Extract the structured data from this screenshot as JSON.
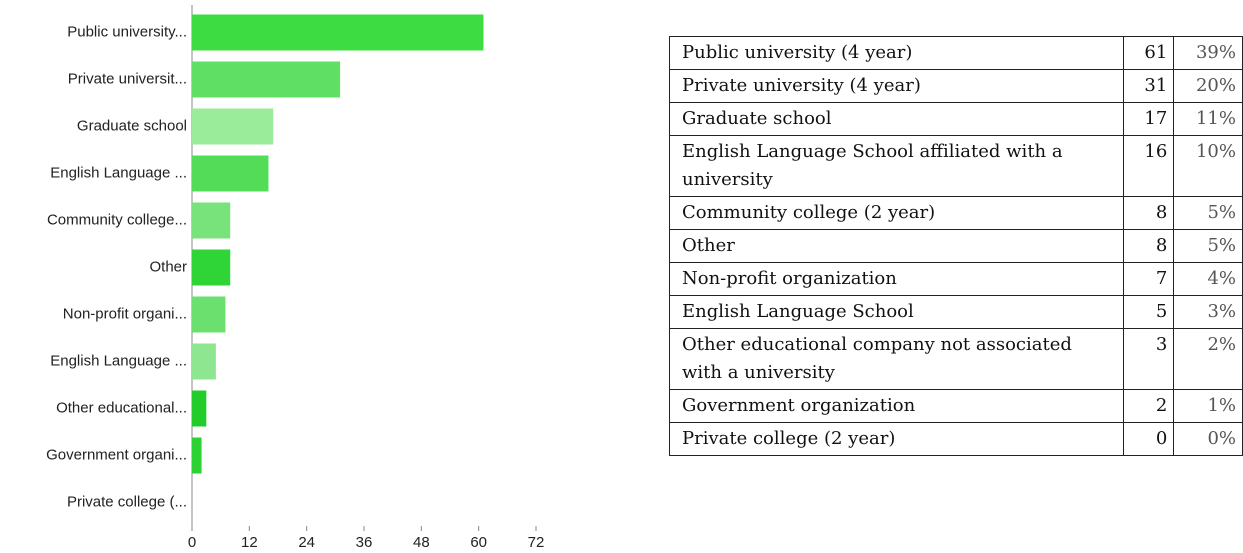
{
  "chart_data": {
    "type": "bar",
    "orientation": "horizontal",
    "categories": [
      "Public university...",
      "Private universit...",
      "Graduate school",
      "English Language ...",
      "Community college...",
      "Other",
      "Non-profit organi...",
      "English Language ...",
      "Other educational...",
      "Government organi...",
      "Private college (..."
    ],
    "series": [
      {
        "values": [
          61,
          31,
          17,
          16,
          8,
          8,
          7,
          5,
          3,
          2,
          0
        ],
        "colors": [
          "#3cdc42",
          "#5fe065",
          "#9aeb9a",
          "#52dc58",
          "#78e37b",
          "#2fd536",
          "#6be06f",
          "#8ee690",
          "#22cc2a",
          "#2bd232",
          "#2bd232"
        ]
      }
    ],
    "xlim": [
      0,
      72
    ],
    "xticks": [
      0,
      12,
      24,
      36,
      48,
      60,
      72
    ]
  },
  "table": {
    "rows": [
      [
        "Public university (4 year)",
        "61",
        "39%"
      ],
      [
        "Private university (4 year)",
        "31",
        "20%"
      ],
      [
        "Graduate school",
        "17",
        "11%"
      ],
      [
        "English Language School affiliated with a university",
        "16",
        "10%"
      ],
      [
        "Community college (2 year)",
        "8",
        "5%"
      ],
      [
        "Other",
        "8",
        "5%"
      ],
      [
        "Non-profit organization",
        "7",
        "4%"
      ],
      [
        "English Language School",
        "5",
        "3%"
      ],
      [
        "Other educational company not associated with a university",
        "3",
        "2%"
      ],
      [
        "Government organization",
        "2",
        "1%"
      ],
      [
        "Private college (2 year)",
        "0",
        "0%"
      ]
    ]
  }
}
